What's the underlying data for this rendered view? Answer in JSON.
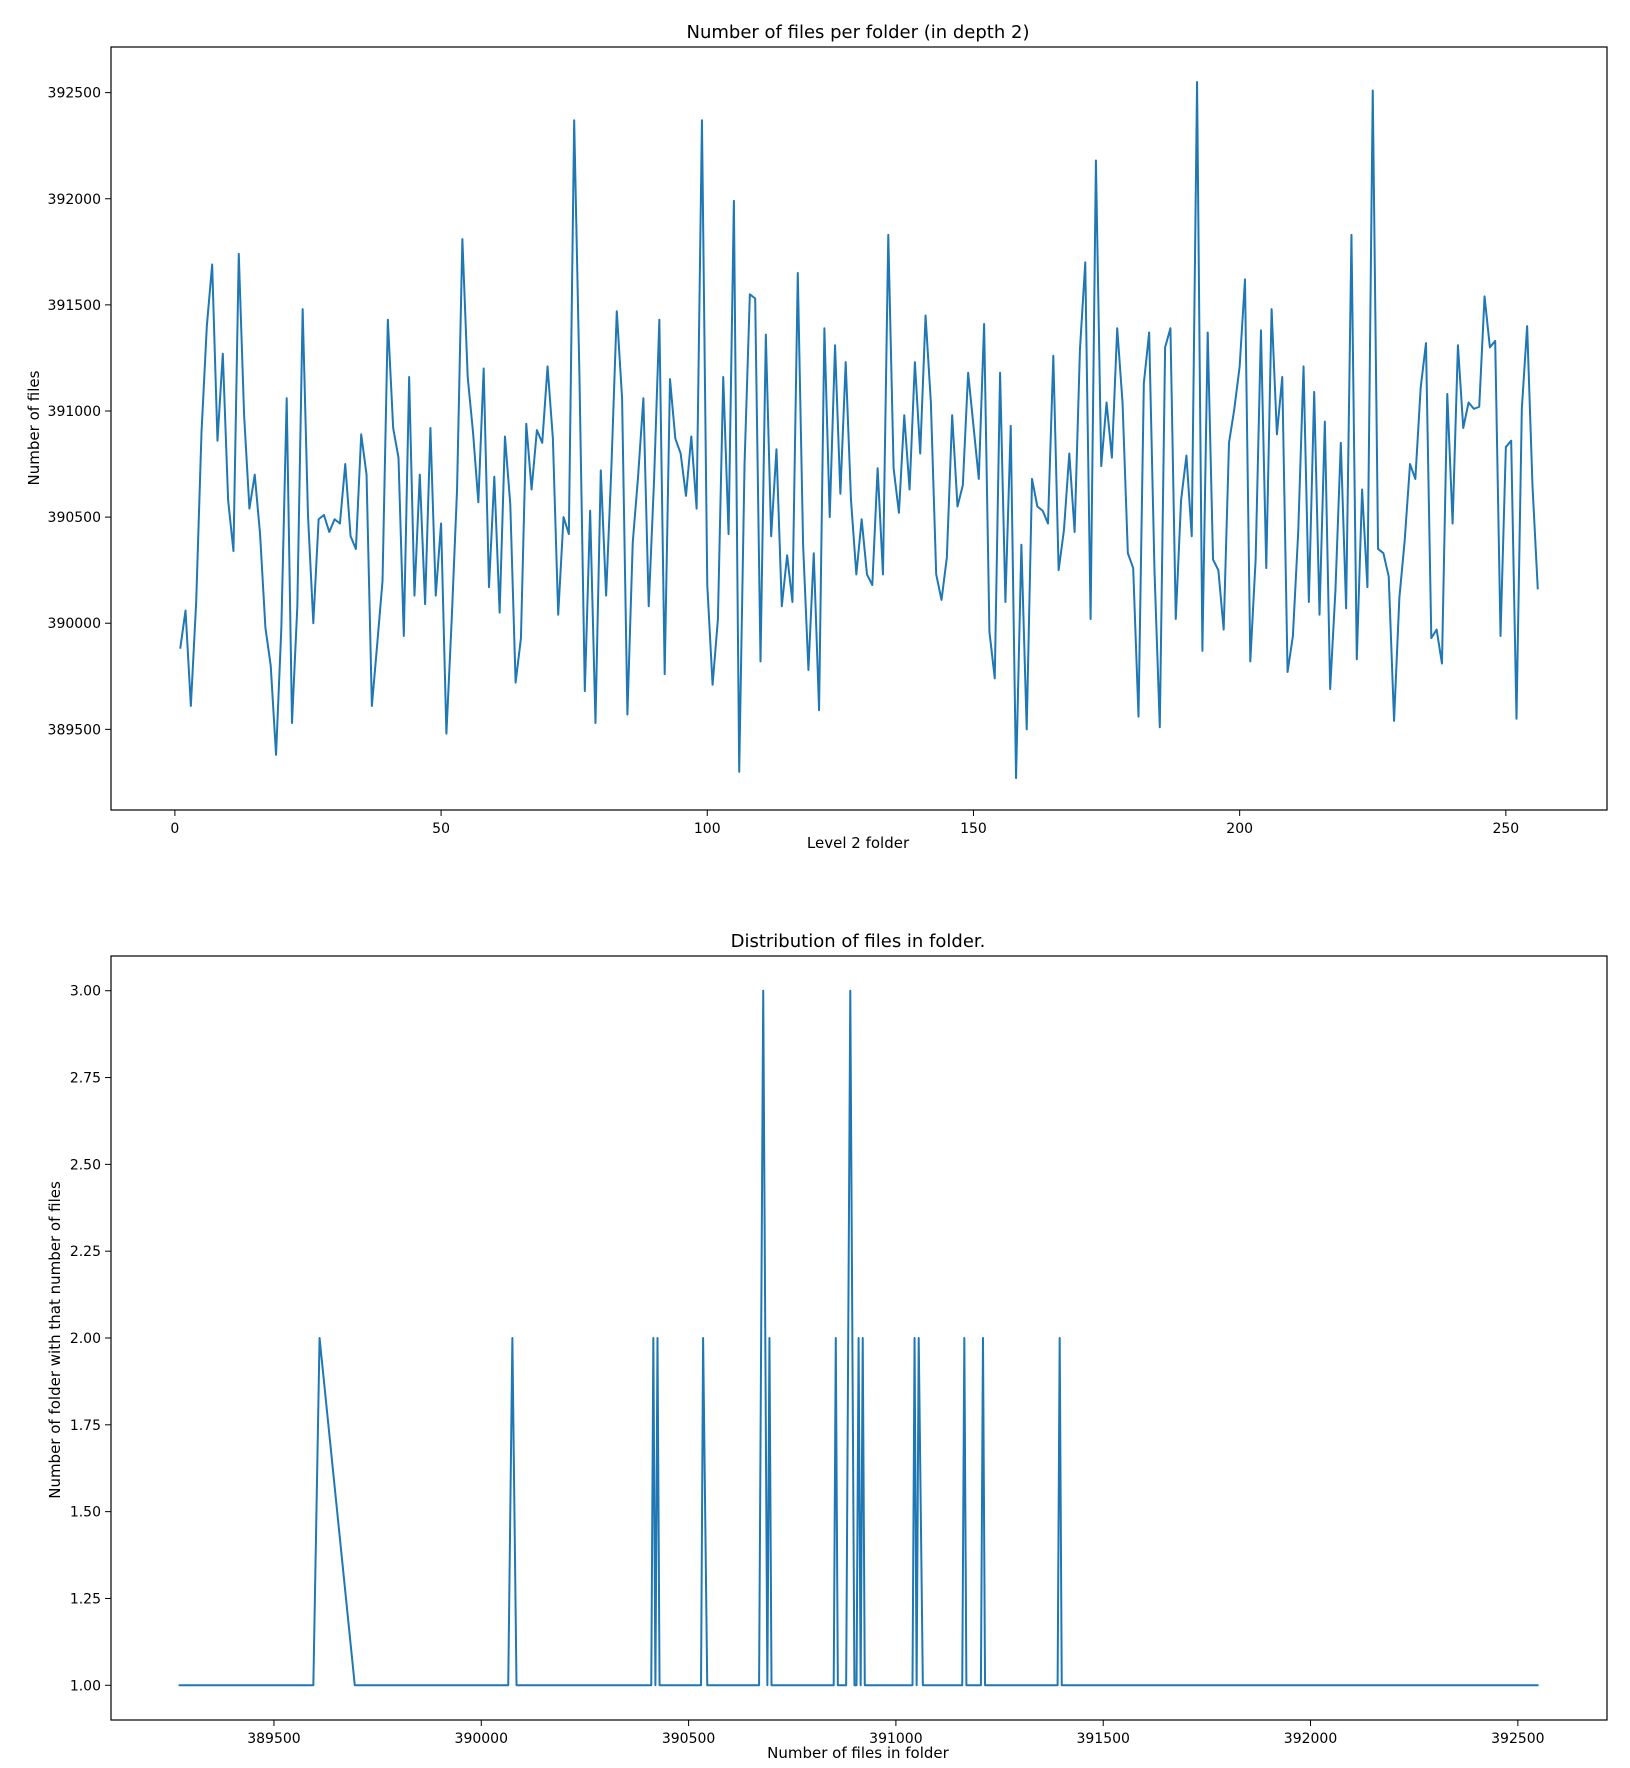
{
  "chart_data": [
    {
      "type": "line",
      "title": "Number of files per folder (in depth 2)",
      "xlabel": "Level 2 folder",
      "ylabel": "Number of files",
      "xlim": [
        -12,
        269
      ],
      "ylim": [
        389120,
        392715
      ],
      "xticks": [
        0,
        50,
        100,
        150,
        200,
        250
      ],
      "yticks": [
        389500,
        390000,
        390500,
        391000,
        391500,
        392000,
        392500
      ],
      "grid": false,
      "color": "#1f77b4",
      "series": [
        {
          "x_start": 1,
          "values": [
            389880,
            390060,
            389610,
            390100,
            390900,
            391400,
            391690,
            390860,
            391270,
            390580,
            390340,
            391740,
            390980,
            390540,
            390700,
            390420,
            389980,
            389800,
            389380,
            389980,
            391060,
            389530,
            390080,
            391480,
            390510,
            390000,
            390490,
            390510,
            390430,
            390490,
            390470,
            390750,
            390410,
            390350,
            390890,
            390700,
            389610,
            389900,
            390200,
            391430,
            390920,
            390780,
            389940,
            391160,
            390130,
            390700,
            390090,
            390920,
            390130,
            390470,
            389480,
            390020,
            390630,
            391810,
            391160,
            390900,
            390570,
            391200,
            390170,
            390690,
            390050,
            390880,
            390560,
            389720,
            389930,
            390940,
            390630,
            390910,
            390850,
            391210,
            390870,
            390040,
            390500,
            390420,
            392370,
            391150,
            389680,
            390530,
            389530,
            390720,
            390130,
            390740,
            391470,
            391060,
            389570,
            390380,
            390690,
            391060,
            390080,
            390670,
            391430,
            389760,
            391150,
            390870,
            390800,
            390600,
            390880,
            390540,
            392370,
            390180,
            389710,
            390020,
            391160,
            390420,
            391990,
            389300,
            390750,
            391550,
            391530,
            389820,
            391360,
            390410,
            390820,
            390080,
            390320,
            390100,
            391650,
            390370,
            389780,
            390330,
            389590,
            391390,
            390500,
            391310,
            390610,
            391230,
            390580,
            390230,
            390490,
            390230,
            390180,
            390730,
            390230,
            391830,
            390730,
            390520,
            390980,
            390630,
            391230,
            390800,
            391450,
            391040,
            390230,
            390110,
            390310,
            390980,
            390550,
            390650,
            391180,
            390930,
            390680,
            391410,
            389960,
            389740,
            391180,
            390100,
            390930,
            389270,
            390370,
            389500,
            390680,
            390550,
            390530,
            390470,
            391260,
            390250,
            390440,
            390800,
            390430,
            391290,
            391700,
            390020,
            392180,
            390740,
            391040,
            390780,
            391390,
            391040,
            390330,
            390260,
            389560,
            391130,
            391370,
            390250,
            389510,
            391300,
            391390,
            390020,
            390580,
            390790,
            390410,
            392550,
            389870,
            391370,
            390300,
            390250,
            389970,
            390850,
            391010,
            391210,
            391620,
            389820,
            390300,
            391380,
            390260,
            391480,
            390890,
            391160,
            389770,
            389940,
            390430,
            391210,
            390100,
            391090,
            390040,
            390950,
            389690,
            390160,
            390850,
            390070,
            391830,
            389830,
            390630,
            390170,
            392510,
            390350,
            390330,
            390220,
            389540,
            390120,
            390390,
            390750,
            390680,
            391110,
            391320,
            389930,
            389970,
            389810,
            391080,
            390470,
            391310,
            390920,
            391040,
            391010,
            391020,
            391540,
            391300,
            391330,
            389940,
            390830,
            390860,
            389550,
            391010,
            391400,
            390650,
            390160
          ]
        }
      ]
    },
    {
      "type": "line",
      "title": "Distribution of files in folder.",
      "xlabel": "Number of files in folder",
      "ylabel": "Number of folder with that number of files",
      "xlim": [
        389107,
        392715
      ],
      "ylim": [
        0.9,
        3.1
      ],
      "xticks": [
        389500,
        390000,
        390500,
        391000,
        391500,
        392000,
        392500
      ],
      "yticks": [
        1.0,
        1.25,
        1.5,
        1.75,
        2.0,
        2.25,
        2.5,
        2.75,
        3.0
      ],
      "ytick_labels": [
        "1.00",
        "1.25",
        "1.50",
        "1.75",
        "2.00",
        "2.25",
        "2.50",
        "2.75",
        "3.00"
      ],
      "grid": false,
      "color": "#1f77b4",
      "series": [
        {
          "x": [
            389270,
            389595,
            389610,
            389695,
            390065,
            390075,
            390085,
            390410,
            390415,
            390420,
            390425,
            390430,
            390530,
            390535,
            390545,
            390670,
            390680,
            390690,
            390695,
            390700,
            390850,
            390855,
            390860,
            390880,
            390890,
            390900,
            390905,
            390910,
            390915,
            390920,
            390925,
            391040,
            391045,
            391050,
            391055,
            391065,
            391160,
            391165,
            391170,
            391205,
            391210,
            391215,
            391390,
            391395,
            391400,
            392550
          ],
          "y": [
            1,
            1,
            2,
            1,
            1,
            2,
            1,
            1,
            2,
            1,
            2,
            1,
            1,
            2,
            1,
            1,
            3,
            1,
            2,
            1,
            1,
            2,
            1,
            1,
            3,
            1,
            1,
            2,
            1,
            2,
            1,
            1,
            2,
            1,
            2,
            1,
            1,
            2,
            1,
            1,
            2,
            1,
            1,
            2,
            1,
            1
          ]
        }
      ]
    }
  ]
}
